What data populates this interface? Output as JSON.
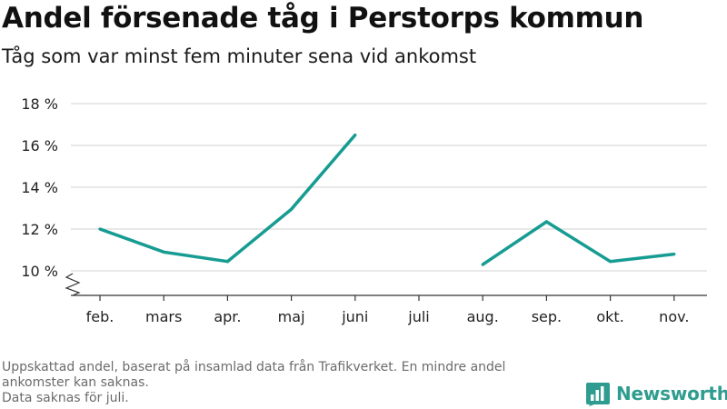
{
  "title": "Andel försenade tåg i Perstorps kommun",
  "subtitle": "Tåg som var minst fem minuter sena vid ankomst",
  "footnote": {
    "line1": "Uppskattad andel, baserat på insamlad data från Trafikverket. En mindre andel\nankomster kan saknas.",
    "line2": "Data saknas för juli."
  },
  "brand": {
    "name": "Newsworthy",
    "color": "#2e9c8f",
    "icon": "bar-chart-logo-icon"
  },
  "chart_data": {
    "type": "line",
    "categories": [
      "feb.",
      "mars",
      "apr.",
      "maj",
      "juni",
      "juli",
      "aug.",
      "sep.",
      "okt.",
      "nov."
    ],
    "series": [
      {
        "values": [
          12.0,
          10.9,
          10.45,
          12.95,
          16.5,
          null,
          10.3,
          12.35,
          10.45,
          10.8
        ],
        "color": "#169c92"
      }
    ],
    "yticks": [
      {
        "value": 10,
        "label": "10 %"
      },
      {
        "value": 12,
        "label": "12 %"
      },
      {
        "value": 14,
        "label": "14 %"
      },
      {
        "value": 16,
        "label": "16 %"
      },
      {
        "value": 18,
        "label": "18 %"
      }
    ],
    "ylim": [
      8.8,
      18
    ],
    "y_axis_break": true,
    "grid": true,
    "xlabel": "",
    "ylabel": ""
  }
}
